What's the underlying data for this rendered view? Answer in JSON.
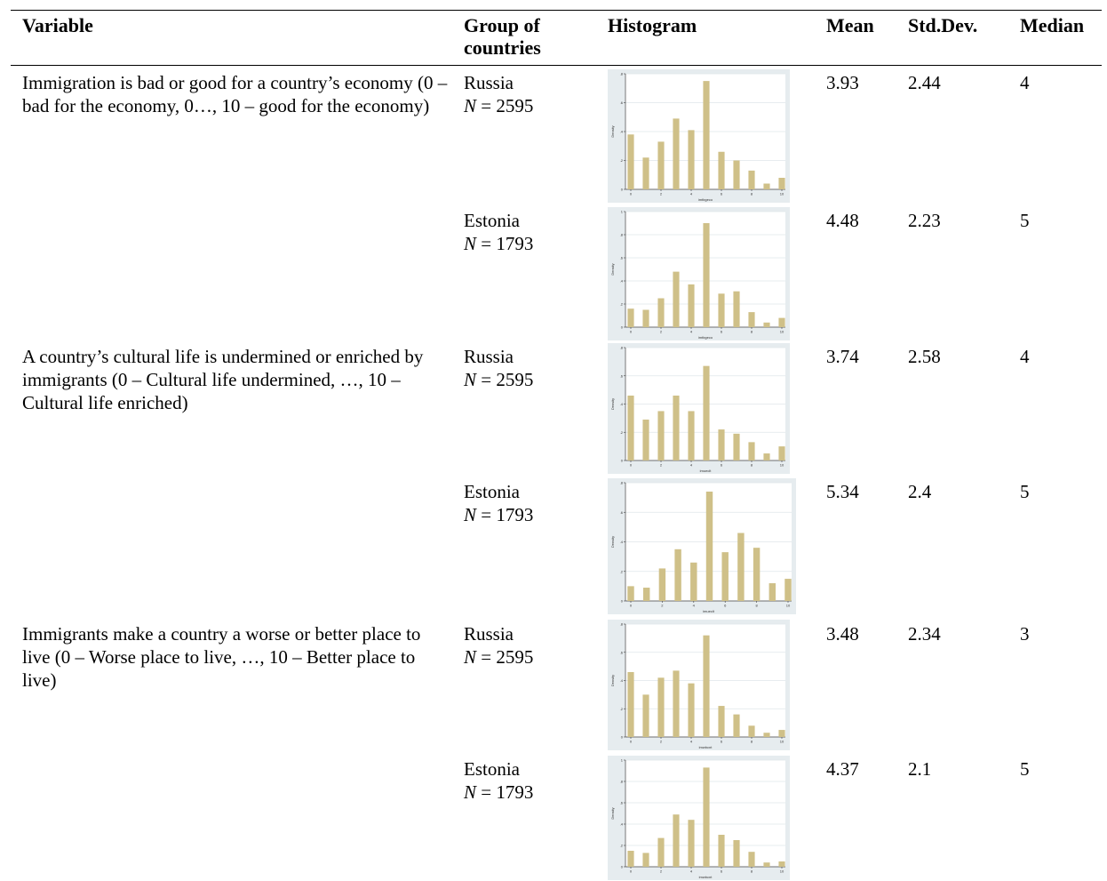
{
  "header": {
    "variable": "Variable",
    "group": "Group of countries",
    "histogram": "Histogram",
    "mean": "Mean",
    "std": "Std.Dev.",
    "median": "Median"
  },
  "labels": {
    "n_prefix": "N"
  },
  "rows": [
    {
      "variable": "Immigration is bad or good for a country’s economy (0 – bad for the economy, 0…, 10 – good for the economy)",
      "groups": [
        {
          "country": "Russia",
          "n": "= 2595",
          "mean": "3.93",
          "std": "2.44",
          "median": "4"
        },
        {
          "country": "Estonia",
          "n": "= 1793",
          "mean": "4.48",
          "std": "2.23",
          "median": "5"
        }
      ]
    },
    {
      "variable": "A country’s cultural life is undermined or enriched by immigrants (0 – Cultural life undermined, …, 10 – Cultural life enriched)",
      "groups": [
        {
          "country": "Russia",
          "n": "= 2595",
          "mean": "3.74",
          "std": "2.58",
          "median": "4"
        },
        {
          "country": "Estonia",
          "n": "= 1793",
          "mean": "5.34",
          "std": "2.4",
          "median": "5"
        }
      ]
    },
    {
      "variable": "Immigrants make a country a worse or better place to live (0 – Worse place to live, …, 10 – Better place to live)",
      "groups": [
        {
          "country": "Russia",
          "n": "= 2595",
          "mean": "3.48",
          "std": "2.34",
          "median": "3"
        },
        {
          "country": "Estonia",
          "n": "= 1793",
          "mean": "4.37",
          "std": "2.1",
          "median": "5"
        }
      ]
    }
  ],
  "chart_data": [
    {
      "type": "bar",
      "xlabel": "imtbgeco",
      "ylabel": "Density",
      "ylim": [
        0,
        0.8
      ],
      "yticks": [
        "0",
        ".2",
        ".4",
        ".6",
        ".8"
      ],
      "xticks": [
        "0",
        "2",
        "4",
        "6",
        "8",
        "10"
      ],
      "x": [
        0,
        1,
        2,
        3,
        4,
        5,
        6,
        7,
        8,
        9,
        10
      ],
      "values": [
        0.38,
        0.22,
        0.33,
        0.49,
        0.41,
        0.75,
        0.26,
        0.2,
        0.13,
        0.04,
        0.08
      ],
      "color": "#cfc088"
    },
    {
      "type": "bar",
      "xlabel": "imtbgeco",
      "ylabel": "Density",
      "ylim": [
        0,
        1.0
      ],
      "yticks": [
        "0",
        ".2",
        ".4",
        ".6",
        ".8",
        "1"
      ],
      "xticks": [
        "0",
        "2",
        "4",
        "6",
        "8",
        "10"
      ],
      "x": [
        0,
        1,
        2,
        3,
        4,
        5,
        6,
        7,
        8,
        9,
        10
      ],
      "values": [
        0.16,
        0.15,
        0.25,
        0.48,
        0.37,
        0.9,
        0.29,
        0.31,
        0.13,
        0.04,
        0.08
      ],
      "color": "#cfc088"
    },
    {
      "type": "bar",
      "xlabel": "imueclt",
      "ylabel": "Density",
      "ylim": [
        0,
        0.8
      ],
      "yticks": [
        "0",
        ".2",
        ".4",
        ".6",
        ".8"
      ],
      "xticks": [
        "0",
        "2",
        "4",
        "6",
        "8",
        "10"
      ],
      "x": [
        0,
        1,
        2,
        3,
        4,
        5,
        6,
        7,
        8,
        9,
        10
      ],
      "values": [
        0.46,
        0.29,
        0.35,
        0.46,
        0.35,
        0.67,
        0.22,
        0.19,
        0.13,
        0.05,
        0.1
      ],
      "color": "#cfc088"
    },
    {
      "type": "bar",
      "xlabel": "imueclt",
      "ylabel": "Density",
      "ylim": [
        0,
        0.8
      ],
      "yticks": [
        "0",
        ".2",
        ".4",
        ".6",
        ".8"
      ],
      "xticks": [
        "0",
        "2",
        "4",
        "6",
        "8",
        "10"
      ],
      "x": [
        0,
        1,
        2,
        3,
        4,
        5,
        6,
        7,
        8,
        9,
        10
      ],
      "values": [
        0.1,
        0.09,
        0.22,
        0.35,
        0.26,
        0.74,
        0.33,
        0.46,
        0.36,
        0.12,
        0.15
      ],
      "color": "#cfc088"
    },
    {
      "type": "bar",
      "xlabel": "imwbcnt",
      "ylabel": "Density",
      "ylim": [
        0,
        0.8
      ],
      "yticks": [
        "0",
        ".2",
        ".4",
        ".6",
        ".8"
      ],
      "xticks": [
        "0",
        "2",
        "4",
        "6",
        "8",
        "10"
      ],
      "x": [
        0,
        1,
        2,
        3,
        4,
        5,
        6,
        7,
        8,
        9,
        10
      ],
      "values": [
        0.46,
        0.3,
        0.42,
        0.47,
        0.38,
        0.72,
        0.22,
        0.16,
        0.08,
        0.03,
        0.05
      ],
      "color": "#cfc088"
    },
    {
      "type": "bar",
      "xlabel": "imwbcnt",
      "ylabel": "Density",
      "ylim": [
        0,
        1.0
      ],
      "yticks": [
        "0",
        ".2",
        ".4",
        ".6",
        ".8",
        "1"
      ],
      "xticks": [
        "0",
        "2",
        "4",
        "6",
        "8",
        "10"
      ],
      "x": [
        0,
        1,
        2,
        3,
        4,
        5,
        6,
        7,
        8,
        9,
        10
      ],
      "values": [
        0.15,
        0.13,
        0.27,
        0.49,
        0.44,
        0.93,
        0.3,
        0.25,
        0.14,
        0.04,
        0.05
      ],
      "color": "#cfc088"
    }
  ]
}
